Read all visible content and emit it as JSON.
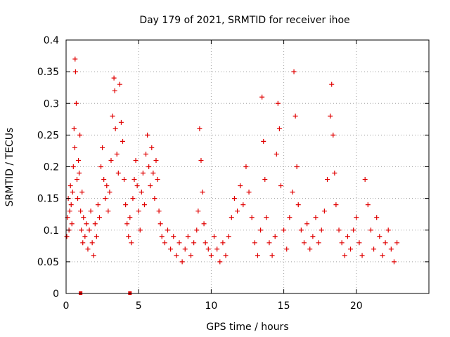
{
  "chart_data": {
    "type": "scatter",
    "title": "Day 179 of 2021, SRMTID for receiver ihoe",
    "xlabel": "GPS time / hours",
    "ylabel": "SRMTID / TECUs",
    "xlim": [
      0,
      25
    ],
    "ylim": [
      0,
      0.4
    ],
    "xticks": [
      0,
      5,
      10,
      15,
      20
    ],
    "yticks": [
      0,
      0.05,
      0.1,
      0.15,
      0.2,
      0.25,
      0.3,
      0.35,
      0.4
    ],
    "xtick_labels": [
      "0",
      "5",
      "10",
      "15",
      "20"
    ],
    "ytick_labels": [
      "0",
      "0.05",
      "0.1",
      "0.15",
      "0.2",
      "0.25",
      "0.3",
      "0.35",
      "0.4"
    ],
    "grid": true,
    "marker": "+",
    "color": "#e00000",
    "series": [
      {
        "name": "SRMTID",
        "points": [
          [
            0.05,
            0.09
          ],
          [
            0.1,
            0.12
          ],
          [
            0.15,
            0.15
          ],
          [
            0.2,
            0.1
          ],
          [
            0.25,
            0.13
          ],
          [
            0.3,
            0.17
          ],
          [
            0.35,
            0.14
          ],
          [
            0.4,
            0.11
          ],
          [
            0.45,
            0.16
          ],
          [
            0.5,
            0.2
          ],
          [
            0.55,
            0.26
          ],
          [
            0.6,
            0.23
          ],
          [
            0.62,
            0.37
          ],
          [
            0.65,
            0.35
          ],
          [
            0.7,
            0.3
          ],
          [
            0.75,
            0.18
          ],
          [
            0.8,
            0.15
          ],
          [
            0.85,
            0.21
          ],
          [
            0.9,
            0.19
          ],
          [
            0.95,
            0.25
          ],
          [
            1.0,
            0.13
          ],
          [
            1.05,
            0.1
          ],
          [
            1.1,
            0.16
          ],
          [
            1.15,
            0.08
          ],
          [
            1.2,
            0.12
          ],
          [
            1.3,
            0.09
          ],
          [
            1.4,
            0.11
          ],
          [
            1.5,
            0.07
          ],
          [
            1.6,
            0.1
          ],
          [
            1.7,
            0.13
          ],
          [
            1.8,
            0.08
          ],
          [
            1.9,
            0.06
          ],
          [
            2.0,
            0.11
          ],
          [
            2.1,
            0.09
          ],
          [
            2.2,
            0.14
          ],
          [
            2.3,
            0.12
          ],
          [
            2.4,
            0.2
          ],
          [
            2.5,
            0.23
          ],
          [
            2.6,
            0.18
          ],
          [
            2.7,
            0.15
          ],
          [
            2.8,
            0.17
          ],
          [
            2.9,
            0.13
          ],
          [
            3.0,
            0.16
          ],
          [
            3.1,
            0.21
          ],
          [
            3.2,
            0.28
          ],
          [
            3.3,
            0.34
          ],
          [
            3.35,
            0.32
          ],
          [
            3.4,
            0.26
          ],
          [
            3.5,
            0.22
          ],
          [
            3.6,
            0.19
          ],
          [
            3.7,
            0.33
          ],
          [
            3.8,
            0.27
          ],
          [
            3.9,
            0.24
          ],
          [
            4.0,
            0.18
          ],
          [
            4.1,
            0.14
          ],
          [
            4.2,
            0.11
          ],
          [
            4.3,
            0.09
          ],
          [
            4.4,
            0.12
          ],
          [
            4.5,
            0.08
          ],
          [
            4.6,
            0.15
          ],
          [
            4.7,
            0.18
          ],
          [
            4.8,
            0.21
          ],
          [
            4.9,
            0.17
          ],
          [
            5.0,
            0.13
          ],
          [
            5.1,
            0.1
          ],
          [
            5.2,
            0.16
          ],
          [
            5.3,
            0.19
          ],
          [
            5.4,
            0.14
          ],
          [
            5.5,
            0.22
          ],
          [
            5.6,
            0.25
          ],
          [
            5.7,
            0.2
          ],
          [
            5.8,
            0.17
          ],
          [
            5.9,
            0.23
          ],
          [
            6.0,
            0.19
          ],
          [
            6.1,
            0.15
          ],
          [
            6.2,
            0.21
          ],
          [
            6.3,
            0.18
          ],
          [
            6.4,
            0.13
          ],
          [
            6.5,
            0.11
          ],
          [
            6.6,
            0.09
          ],
          [
            6.8,
            0.08
          ],
          [
            7.0,
            0.1
          ],
          [
            7.2,
            0.07
          ],
          [
            7.4,
            0.09
          ],
          [
            7.6,
            0.06
          ],
          [
            7.8,
            0.08
          ],
          [
            8.0,
            0.05
          ],
          [
            8.2,
            0.07
          ],
          [
            8.4,
            0.09
          ],
          [
            8.6,
            0.06
          ],
          [
            8.8,
            0.08
          ],
          [
            9.0,
            0.1
          ],
          [
            9.1,
            0.13
          ],
          [
            9.2,
            0.26
          ],
          [
            9.3,
            0.21
          ],
          [
            9.4,
            0.16
          ],
          [
            9.5,
            0.11
          ],
          [
            9.6,
            0.08
          ],
          [
            9.8,
            0.07
          ],
          [
            10.0,
            0.06
          ],
          [
            10.2,
            0.09
          ],
          [
            10.4,
            0.07
          ],
          [
            10.6,
            0.05
          ],
          [
            10.8,
            0.08
          ],
          [
            11.0,
            0.06
          ],
          [
            11.2,
            0.09
          ],
          [
            11.4,
            0.12
          ],
          [
            11.6,
            0.15
          ],
          [
            11.8,
            0.13
          ],
          [
            12.0,
            0.17
          ],
          [
            12.2,
            0.14
          ],
          [
            12.4,
            0.2
          ],
          [
            12.6,
            0.16
          ],
          [
            12.8,
            0.12
          ],
          [
            13.0,
            0.08
          ],
          [
            13.2,
            0.06
          ],
          [
            13.4,
            0.1
          ],
          [
            13.5,
            0.31
          ],
          [
            13.6,
            0.24
          ],
          [
            13.7,
            0.18
          ],
          [
            13.8,
            0.12
          ],
          [
            14.0,
            0.08
          ],
          [
            14.2,
            0.06
          ],
          [
            14.4,
            0.09
          ],
          [
            14.5,
            0.22
          ],
          [
            14.6,
            0.3
          ],
          [
            14.7,
            0.26
          ],
          [
            14.8,
            0.17
          ],
          [
            15.0,
            0.1
          ],
          [
            15.2,
            0.07
          ],
          [
            15.4,
            0.12
          ],
          [
            15.6,
            0.16
          ],
          [
            15.7,
            0.35
          ],
          [
            15.8,
            0.28
          ],
          [
            15.9,
            0.2
          ],
          [
            16.0,
            0.14
          ],
          [
            16.2,
            0.1
          ],
          [
            16.4,
            0.08
          ],
          [
            16.6,
            0.11
          ],
          [
            16.8,
            0.07
          ],
          [
            17.0,
            0.09
          ],
          [
            17.2,
            0.12
          ],
          [
            17.4,
            0.08
          ],
          [
            17.6,
            0.1
          ],
          [
            17.8,
            0.13
          ],
          [
            18.0,
            0.18
          ],
          [
            18.2,
            0.28
          ],
          [
            18.3,
            0.33
          ],
          [
            18.4,
            0.25
          ],
          [
            18.5,
            0.19
          ],
          [
            18.6,
            0.14
          ],
          [
            18.8,
            0.1
          ],
          [
            19.0,
            0.08
          ],
          [
            19.2,
            0.06
          ],
          [
            19.4,
            0.09
          ],
          [
            19.6,
            0.07
          ],
          [
            19.8,
            0.1
          ],
          [
            20.0,
            0.12
          ],
          [
            20.2,
            0.08
          ],
          [
            20.4,
            0.06
          ],
          [
            20.6,
            0.18
          ],
          [
            20.8,
            0.14
          ],
          [
            21.0,
            0.1
          ],
          [
            21.2,
            0.07
          ],
          [
            21.4,
            0.12
          ],
          [
            21.6,
            0.09
          ],
          [
            21.8,
            0.06
          ],
          [
            22.0,
            0.08
          ],
          [
            22.2,
            0.1
          ],
          [
            22.4,
            0.07
          ],
          [
            22.6,
            0.05
          ],
          [
            22.8,
            0.08
          ]
        ]
      }
    ],
    "gap_markers_x": [
      1.0,
      4.4
    ]
  }
}
